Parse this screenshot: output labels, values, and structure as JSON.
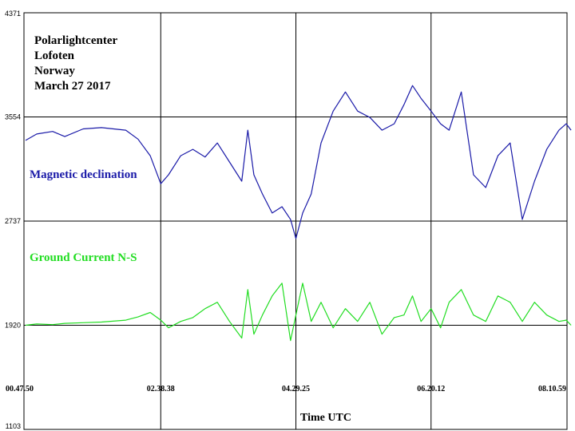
{
  "chart_data": {
    "type": "line",
    "header_lines": [
      "Polarlightcenter",
      "Lofoten",
      "Norway",
      "March 27 2017"
    ],
    "xlabel": "Time UTC",
    "ylabel": "",
    "x_ticks": [
      "00.47.50",
      "02.38.38",
      "04.29.25",
      "06.20.12",
      "08.10.59"
    ],
    "y_ticks": [
      4371,
      3554,
      2737,
      1920,
      1103
    ],
    "ylim": [
      1103,
      4371
    ],
    "grid": true,
    "series": [
      {
        "name": "Magnetic declination",
        "color": "#1a1aa8",
        "x": [
          "00.47.50",
          "00.57.00",
          "01.10.00",
          "01.20.00",
          "01.35.00",
          "01.50.00",
          "02.10.00",
          "02.20.00",
          "02.30.00",
          "02.38.38",
          "02.45.00",
          "02.55.00",
          "03.05.00",
          "03.15.00",
          "03.25.00",
          "03.35.00",
          "03.45.00",
          "03.50.00",
          "03.55.00",
          "04.02.00",
          "04.10.00",
          "04.18.00",
          "04.25.00",
          "04.29.25",
          "04.35.00",
          "04.42.00",
          "04.50.00",
          "05.00.00",
          "05.10.00",
          "05.20.00",
          "05.30.00",
          "05.40.00",
          "05.50.00",
          "05.58.00",
          "06.05.00",
          "06.12.00",
          "06.20.12",
          "06.28.00",
          "06.35.00",
          "06.45.00",
          "06.55.00",
          "07.05.00",
          "07.15.00",
          "07.25.00",
          "07.35.00",
          "07.45.00",
          "07.55.00",
          "08.05.00",
          "08.10.59",
          "08.15.00"
        ],
        "values": [
          3370,
          3420,
          3440,
          3400,
          3460,
          3470,
          3450,
          3380,
          3250,
          3030,
          3100,
          3250,
          3300,
          3240,
          3350,
          3200,
          3050,
          3450,
          3100,
          2950,
          2800,
          2850,
          2750,
          2600,
          2800,
          2950,
          3350,
          3600,
          3750,
          3600,
          3550,
          3450,
          3500,
          3650,
          3800,
          3700,
          3600,
          3500,
          3450,
          3750,
          3100,
          3000,
          3250,
          3350,
          2750,
          3050,
          3300,
          3450,
          3500,
          3450
        ]
      },
      {
        "name": "Ground Current N-S",
        "color": "#22dd22",
        "x": [
          "00.47.50",
          "00.57.00",
          "01.10.00",
          "01.20.00",
          "01.35.00",
          "01.50.00",
          "02.10.00",
          "02.20.00",
          "02.30.00",
          "02.38.38",
          "02.45.00",
          "02.55.00",
          "03.05.00",
          "03.15.00",
          "03.25.00",
          "03.35.00",
          "03.45.00",
          "03.50.00",
          "03.55.00",
          "04.02.00",
          "04.10.00",
          "04.18.00",
          "04.25.00",
          "04.29.25",
          "04.35.00",
          "04.42.00",
          "04.50.00",
          "05.00.00",
          "05.10.00",
          "05.20.00",
          "05.30.00",
          "05.40.00",
          "05.50.00",
          "05.58.00",
          "06.05.00",
          "06.12.00",
          "06.20.12",
          "06.28.00",
          "06.35.00",
          "06.45.00",
          "06.55.00",
          "07.05.00",
          "07.15.00",
          "07.25.00",
          "07.35.00",
          "07.45.00",
          "07.55.00",
          "08.05.00",
          "08.10.59",
          "08.15.00"
        ],
        "values": [
          1920,
          1930,
          1925,
          1935,
          1940,
          1945,
          1960,
          1985,
          2020,
          1960,
          1900,
          1950,
          1980,
          2050,
          2100,
          1950,
          1820,
          2200,
          1850,
          2000,
          2150,
          2250,
          1800,
          2000,
          2250,
          1950,
          2100,
          1900,
          2050,
          1950,
          2100,
          1850,
          1980,
          2000,
          2150,
          1950,
          2050,
          1900,
          2100,
          2200,
          2000,
          1950,
          2150,
          2100,
          1950,
          2100,
          2000,
          1950,
          1960,
          1920
        ]
      }
    ]
  }
}
